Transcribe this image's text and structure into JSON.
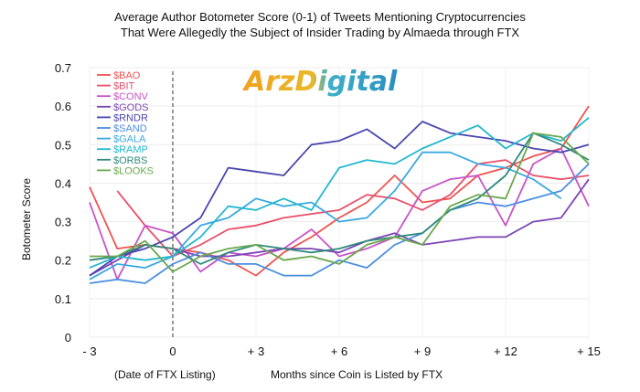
{
  "chart_data": {
    "type": "line",
    "title_line1": "Average Author Botometer Score (0-1) of Tweets Mentioning Cryptocurrencies",
    "title_line2": "That Were Allegedly the Subject of Insider Trading by Almaeda through FTX",
    "ylabel": "Botometer Score",
    "xlabel": "Months since Coin is Listed by FTX",
    "x_extra_label": "(Date of FTX Listing)",
    "watermark": "ArzDigital",
    "ylim": [
      0,
      0.7
    ],
    "xlim": [
      -3,
      15
    ],
    "yticks": [
      0,
      0.1,
      0.2,
      0.3,
      0.4,
      0.5,
      0.6,
      0.7
    ],
    "ytick_labels": [
      "0",
      "0.1",
      "0.2",
      "0.3",
      "0.4",
      "0.5",
      "0.6",
      "0.7"
    ],
    "xticks": [
      -3,
      0,
      3,
      6,
      9,
      12,
      15
    ],
    "xtick_labels": [
      "- 3",
      "0",
      "+ 3",
      "+ 6",
      "+ 9",
      "+ 12",
      "+ 15"
    ],
    "listing_marker_x": 0,
    "legend_position": "top-left",
    "grid": true,
    "series": [
      {
        "name": "$BAO",
        "color": "#ef5350",
        "x": [
          -3,
          -2,
          -1,
          0,
          1,
          2,
          3,
          4,
          5,
          6,
          7,
          8,
          9,
          10,
          11,
          12,
          13,
          14,
          15
        ],
        "values": [
          0.39,
          0.23,
          0.24,
          0.23,
          0.22,
          0.2,
          0.16,
          0.22,
          0.26,
          0.31,
          0.35,
          0.42,
          0.35,
          0.36,
          0.42,
          0.44,
          0.47,
          0.49,
          0.6
        ]
      },
      {
        "name": "$BIT",
        "color": "#e84f6a",
        "x": [
          -2,
          -1,
          0,
          1,
          2,
          3,
          4,
          5,
          6,
          7,
          8,
          9,
          10,
          11,
          12,
          13,
          14,
          15
        ],
        "values": [
          0.38,
          0.29,
          0.21,
          0.24,
          0.28,
          0.29,
          0.31,
          0.32,
          0.33,
          0.37,
          0.36,
          0.33,
          0.37,
          0.45,
          0.46,
          0.42,
          0.41,
          0.42
        ]
      },
      {
        "name": "$CONV",
        "color": "#c853c8",
        "x": [
          -3,
          -2,
          -1,
          0,
          1,
          2,
          3,
          4,
          5,
          6,
          7,
          8,
          9,
          10,
          11,
          12,
          13,
          14,
          15
        ],
        "values": [
          0.35,
          0.15,
          0.29,
          0.27,
          0.17,
          0.22,
          0.21,
          0.23,
          0.28,
          0.21,
          0.23,
          0.26,
          0.38,
          0.41,
          0.42,
          0.29,
          0.45,
          0.49,
          0.34
        ]
      },
      {
        "name": "$GODS",
        "color": "#7b45b5",
        "x": [
          -3,
          -2,
          -1,
          0,
          1,
          2,
          3,
          4,
          5,
          6,
          7,
          8,
          9,
          10,
          11,
          12,
          13,
          14,
          15
        ],
        "values": [
          0.16,
          0.2,
          0.24,
          0.23,
          0.21,
          0.21,
          0.22,
          0.23,
          0.23,
          0.22,
          0.25,
          0.27,
          0.24,
          0.25,
          0.26,
          0.26,
          0.3,
          0.31,
          0.41
        ]
      },
      {
        "name": "$RNDR",
        "color": "#4a47b0",
        "x": [
          -3,
          -2,
          -1,
          0,
          1,
          2,
          3,
          4,
          5,
          6,
          7,
          8,
          9,
          10,
          11,
          12,
          13,
          14,
          15
        ],
        "values": [
          0.16,
          0.21,
          0.23,
          0.26,
          0.31,
          0.44,
          0.43,
          0.42,
          0.5,
          0.51,
          0.54,
          0.49,
          0.56,
          0.53,
          0.52,
          0.51,
          0.49,
          0.48,
          0.5
        ]
      },
      {
        "name": "$SAND",
        "color": "#4c8fe0",
        "x": [
          -3,
          -2,
          -1,
          0,
          1,
          2,
          3,
          4,
          5,
          6,
          7,
          8,
          9,
          10,
          11,
          12,
          13,
          14,
          15
        ],
        "values": [
          0.14,
          0.15,
          0.14,
          0.19,
          0.22,
          0.19,
          0.19,
          0.16,
          0.16,
          0.2,
          0.18,
          0.24,
          0.27,
          0.33,
          0.35,
          0.34,
          0.36,
          0.38,
          0.45
        ]
      },
      {
        "name": "$GALA",
        "color": "#3aa9e0",
        "x": [
          -3,
          -2,
          -1,
          0,
          1,
          2,
          3,
          4,
          5,
          6,
          7,
          8,
          9,
          10,
          11,
          12,
          13,
          14
        ],
        "values": [
          0.15,
          0.19,
          0.18,
          0.21,
          0.29,
          0.31,
          0.36,
          0.34,
          0.35,
          0.3,
          0.31,
          0.38,
          0.48,
          0.48,
          0.45,
          0.44,
          0.41,
          0.36
        ]
      },
      {
        "name": "$RAMP",
        "color": "#22b8cf",
        "x": [
          -3,
          -2,
          -1,
          0,
          1,
          2,
          3,
          4,
          5,
          6,
          7,
          8,
          9,
          10,
          11,
          12,
          13,
          14,
          15
        ],
        "values": [
          0.18,
          0.21,
          0.2,
          0.21,
          0.26,
          0.34,
          0.33,
          0.36,
          0.33,
          0.44,
          0.46,
          0.45,
          0.49,
          0.52,
          0.55,
          0.49,
          0.53,
          0.51,
          0.57
        ]
      },
      {
        "name": "$ORBS",
        "color": "#2e8b7a",
        "x": [
          -3,
          -2,
          -1,
          0,
          1,
          2,
          3,
          4,
          5,
          6,
          7,
          8,
          9,
          10,
          11,
          12,
          13,
          14,
          15
        ],
        "values": [
          0.2,
          0.21,
          0.24,
          0.23,
          0.19,
          0.22,
          0.24,
          0.23,
          0.22,
          0.23,
          0.25,
          0.26,
          0.27,
          0.33,
          0.36,
          0.42,
          0.53,
          0.5,
          0.46
        ]
      },
      {
        "name": "$LOOKS",
        "color": "#6aa84f",
        "x": [
          -3,
          -2,
          -1,
          0,
          1,
          2,
          3,
          4,
          5,
          6,
          7,
          8,
          9,
          10,
          11,
          12,
          13,
          14,
          15
        ],
        "values": [
          0.21,
          0.21,
          0.25,
          0.17,
          0.21,
          0.23,
          0.24,
          0.2,
          0.21,
          0.19,
          0.24,
          0.26,
          0.24,
          0.34,
          0.37,
          0.36,
          0.53,
          0.52,
          0.45
        ]
      }
    ]
  }
}
